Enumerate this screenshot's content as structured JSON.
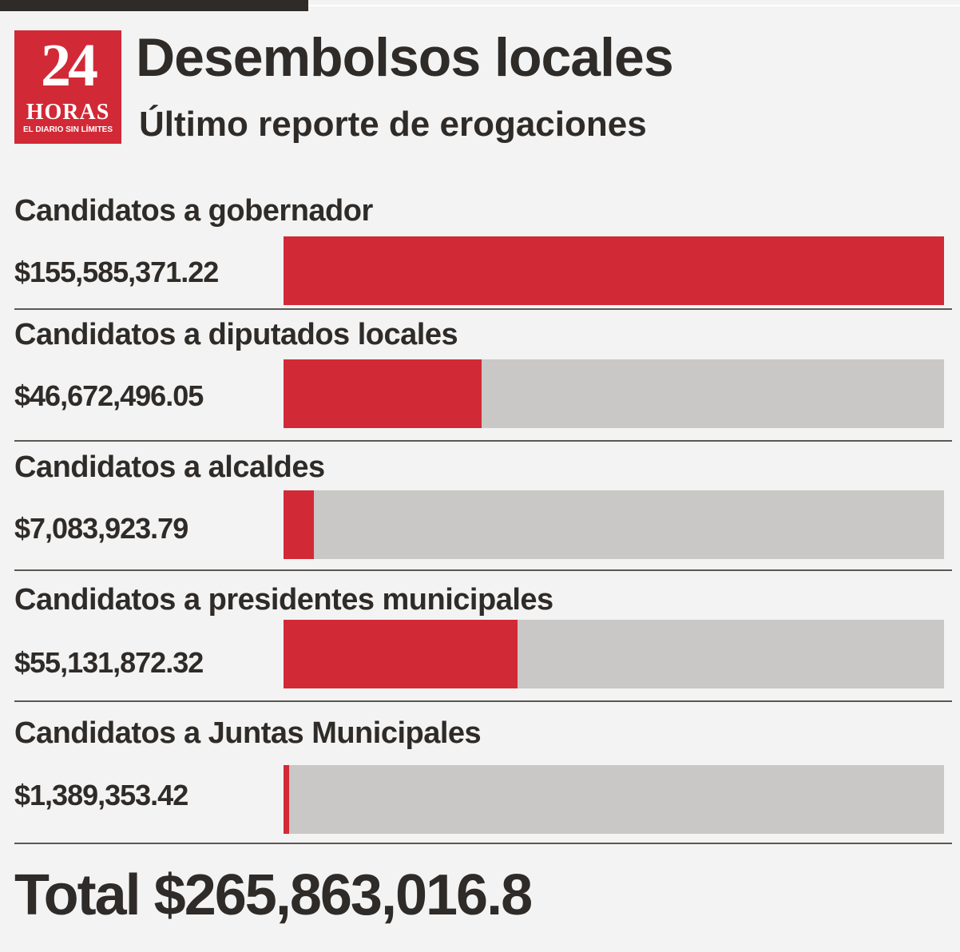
{
  "logo": {
    "number": "24",
    "word": "HORAS",
    "tagline": "EL DIARIO SIN LÍMITES"
  },
  "header": {
    "title": "Desembolsos locales",
    "subtitle": "Último reporte de erogaciones"
  },
  "chart_data": {
    "type": "bar",
    "title": "Desembolsos locales",
    "subtitle": "Último reporte de erogaciones",
    "categories": [
      "Candidatos a gobernador",
      "Candidatos a diputados locales",
      "Candidatos a alcaldes",
      "Candidatos a presidentes municipales",
      "Candidatos a Juntas Municipales"
    ],
    "value_labels": [
      "$155,585,371.22",
      "$46,672,496.05",
      "$7,083,923.79",
      "$55,131,872.32",
      "$1,389,353.42"
    ],
    "values": [
      155585371.22,
      46672496.05,
      7083923.79,
      55131872.32,
      1389353.42
    ],
    "xlim": [
      0,
      155585371.22
    ],
    "grid": false,
    "legend": "none",
    "colors": {
      "fill": "#d22936",
      "track": "#c9c8c6"
    }
  },
  "total": {
    "text": "Total $265,863,016.8"
  }
}
